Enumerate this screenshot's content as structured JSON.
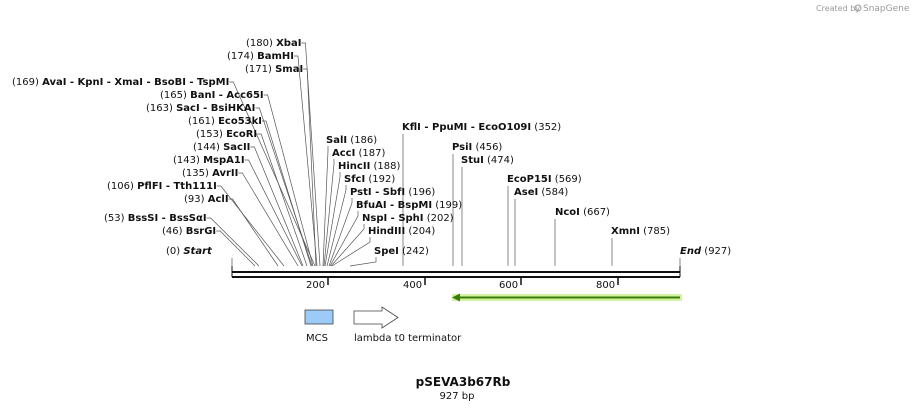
{
  "credit": {
    "prefix": "Created by",
    "brand": "SnapGene"
  },
  "plasmid": {
    "name": "pSEVA3b67Rb",
    "length_label": "927 bp",
    "length": 927
  },
  "axis": {
    "ticks": [
      200,
      400,
      600,
      800
    ]
  },
  "sites": [
    {
      "pos_label": "(180)",
      "names": [
        "XbaI"
      ],
      "pos": 180
    },
    {
      "pos_label": "(174)",
      "names": [
        "BamHI"
      ],
      "pos": 174
    },
    {
      "pos_label": "(171)",
      "names": [
        "SmaI"
      ],
      "pos": 171
    },
    {
      "pos_label": "(169)",
      "names": [
        "AvaI",
        "KpnI",
        "XmaI",
        "BsoBI",
        "TspMI"
      ],
      "pos": 169
    },
    {
      "pos_label": "(165)",
      "names": [
        "BanI",
        "Acc65I"
      ],
      "pos": 165
    },
    {
      "pos_label": "(163)",
      "names": [
        "SacI",
        "BsiHKAI"
      ],
      "pos": 163
    },
    {
      "pos_label": "(161)",
      "names": [
        "Eco53kI"
      ],
      "pos": 161
    },
    {
      "pos_label": "(153)",
      "names": [
        "EcoRI"
      ],
      "pos": 153
    },
    {
      "pos_label": "(144)",
      "names": [
        "SacII"
      ],
      "pos": 144
    },
    {
      "pos_label": "(143)",
      "names": [
        "MspA1I"
      ],
      "pos": 143
    },
    {
      "pos_label": "(135)",
      "names": [
        "AvrII"
      ],
      "pos": 135
    },
    {
      "pos_label": "(106)",
      "names": [
        "PflFI",
        "Tth111I"
      ],
      "pos": 106
    },
    {
      "pos_label": "(93)",
      "names": [
        "AclI"
      ],
      "pos": 93
    },
    {
      "pos_label": "(53)",
      "names": [
        "BssSI",
        "BssSαI"
      ],
      "pos": 53
    },
    {
      "pos_label": "(46)",
      "names": [
        "BsrGI"
      ],
      "pos": 46
    },
    {
      "pos_label": "(0)",
      "names": [
        "Start"
      ],
      "pos": 0,
      "italic": true
    },
    {
      "pos_label": "(186)",
      "names": [
        "SalI"
      ],
      "pos": 186
    },
    {
      "pos_label": "(187)",
      "names": [
        "AccI"
      ],
      "pos": 187
    },
    {
      "pos_label": "(188)",
      "names": [
        "HincII"
      ],
      "pos": 188
    },
    {
      "pos_label": "(192)",
      "names": [
        "SfcI"
      ],
      "pos": 192
    },
    {
      "pos_label": "(196)",
      "names": [
        "PstI",
        "SbfI"
      ],
      "pos": 196
    },
    {
      "pos_label": "(199)",
      "names": [
        "BfuAI",
        "BspMI"
      ],
      "pos": 199
    },
    {
      "pos_label": "(202)",
      "names": [
        "NspI",
        "SphI"
      ],
      "pos": 202
    },
    {
      "pos_label": "(204)",
      "names": [
        "HindIII"
      ],
      "pos": 204
    },
    {
      "pos_label": "(242)",
      "names": [
        "SpeI"
      ],
      "pos": 242
    },
    {
      "pos_label": "(352)",
      "names": [
        "KflI",
        "PpuMI",
        "EcoO109I"
      ],
      "pos": 352
    },
    {
      "pos_label": "(456)",
      "names": [
        "PsiI"
      ],
      "pos": 456
    },
    {
      "pos_label": "(474)",
      "names": [
        "StuI"
      ],
      "pos": 474
    },
    {
      "pos_label": "(569)",
      "names": [
        "EcoP15I"
      ],
      "pos": 569
    },
    {
      "pos_label": "(584)",
      "names": [
        "AseI"
      ],
      "pos": 584
    },
    {
      "pos_label": "(667)",
      "names": [
        "NcoI"
      ],
      "pos": 667
    },
    {
      "pos_label": "(785)",
      "names": [
        "XmnI"
      ],
      "pos": 785
    },
    {
      "pos_label": "(927)",
      "names": [
        "End"
      ],
      "pos": 927,
      "italic": true
    }
  ],
  "features": [
    {
      "name": "MCS",
      "color": "#9ccbf7",
      "shape": "box"
    },
    {
      "name": "lambda t0 terminator",
      "color": "#ffffff",
      "shape": "arrow"
    }
  ],
  "ori_arrow": {
    "color": "#3a7d0a",
    "glow": "#c9f08a",
    "start": 456,
    "end": 927
  }
}
